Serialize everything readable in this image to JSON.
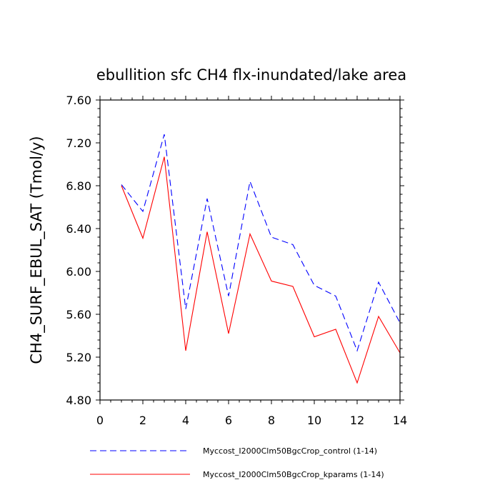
{
  "chart_data": {
    "type": "line",
    "title": "ebullition sfc CH4 flx-inundated/lake area",
    "ylabel": "CH4_SURF_EBUL_SAT  (Tmol/y)",
    "xlabel": "",
    "xlim": [
      0,
      14
    ],
    "ylim": [
      4.8,
      7.6
    ],
    "x_ticks": [
      0,
      2,
      4,
      6,
      8,
      10,
      12,
      14
    ],
    "x_tick_labels": [
      "0",
      "2",
      "4",
      "6",
      "8",
      "10",
      "12",
      "14"
    ],
    "y_ticks": [
      4.8,
      5.2,
      5.6,
      6.0,
      6.4,
      6.8,
      7.2,
      7.6
    ],
    "y_tick_labels": [
      "4.80",
      "5.20",
      "5.60",
      "6.00",
      "6.40",
      "6.80",
      "7.20",
      "7.60"
    ],
    "grid": false,
    "legend_position": "bottom",
    "x": [
      1,
      2,
      3,
      4,
      5,
      6,
      7,
      8,
      9,
      10,
      11,
      12,
      13,
      14
    ],
    "series": [
      {
        "name": "Myccost_I2000Clm50BgcCrop_control (1-14)",
        "color": "#0000ff",
        "dash": "dashed",
        "values": [
          6.81,
          6.56,
          7.28,
          5.65,
          6.68,
          5.77,
          6.84,
          6.32,
          6.25,
          5.87,
          5.77,
          5.26,
          5.9,
          5.52
        ]
      },
      {
        "name": "Myccost_I2000Clm50BgcCrop_kparams (1-14)",
        "color": "#ff0000",
        "dash": "solid",
        "values": [
          6.8,
          6.31,
          7.07,
          5.26,
          6.37,
          5.42,
          6.35,
          5.91,
          5.86,
          5.39,
          5.46,
          4.96,
          5.58,
          5.24
        ]
      }
    ]
  }
}
